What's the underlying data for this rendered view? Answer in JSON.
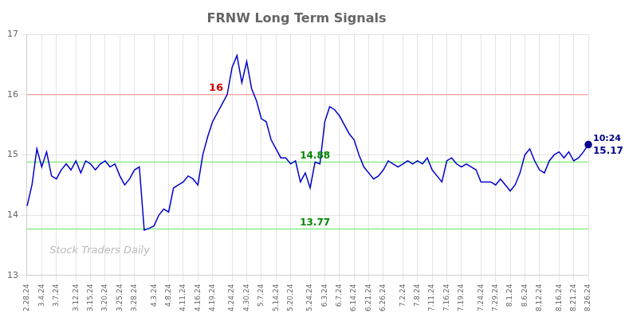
{
  "chart_data": {
    "type": "line",
    "title": "FRNW Long Term Signals",
    "categories": [
      "2.28.24",
      null,
      null,
      "3.4.24",
      null,
      null,
      "3.7.24",
      null,
      null,
      null,
      "3.12.24",
      null,
      null,
      "3.15.24",
      null,
      null,
      "3.20.24",
      null,
      null,
      "3.25.24",
      null,
      null,
      "3.28.24",
      null,
      null,
      null,
      "4.3.24",
      null,
      null,
      "4.8.24",
      null,
      null,
      "4.11.24",
      null,
      null,
      "4.16.24",
      null,
      null,
      "4.19.24",
      null,
      null,
      null,
      "4.24.24",
      null,
      null,
      "4.30.24",
      null,
      null,
      "5.7.24",
      null,
      null,
      "5.14.24",
      null,
      null,
      "5.20.24",
      null,
      null,
      null,
      "5.24.24",
      null,
      null,
      "6.3.24",
      null,
      null,
      "6.7.24",
      null,
      null,
      "6.14.24",
      null,
      null,
      "6.21.24",
      null,
      null,
      "6.26.24",
      null,
      null,
      null,
      "7.2.24",
      null,
      null,
      "7.8.24",
      null,
      null,
      "7.11.24",
      null,
      null,
      "7.16.24",
      null,
      null,
      "7.19.24",
      null,
      null,
      null,
      "7.24.24",
      null,
      null,
      "7.29.24",
      null,
      null,
      "8.1.24",
      null,
      null,
      "8.6.24",
      null,
      null,
      "8.12.24",
      null,
      null,
      null,
      "8.16.24",
      null,
      null,
      "8.21.24",
      null,
      null,
      "8.26.24"
    ],
    "values": [
      14.15,
      14.5,
      15.1,
      14.8,
      15.05,
      14.65,
      14.6,
      14.75,
      14.85,
      14.75,
      14.9,
      14.7,
      14.9,
      14.85,
      14.75,
      14.85,
      14.9,
      14.8,
      14.85,
      14.65,
      14.5,
      14.6,
      14.75,
      14.8,
      13.75,
      13.78,
      13.82,
      14.0,
      14.1,
      14.05,
      14.45,
      14.5,
      14.55,
      14.65,
      14.6,
      14.5,
      15.0,
      15.3,
      15.55,
      15.7,
      15.85,
      16.0,
      16.45,
      16.65,
      16.2,
      16.55,
      16.1,
      15.9,
      15.6,
      15.55,
      15.25,
      15.1,
      14.95,
      14.95,
      14.85,
      14.9,
      14.55,
      14.7,
      14.45,
      14.88,
      14.85,
      15.55,
      15.8,
      15.75,
      15.65,
      15.5,
      15.35,
      15.25,
      15.0,
      14.8,
      14.7,
      14.6,
      14.65,
      14.75,
      14.9,
      14.85,
      14.8,
      14.85,
      14.9,
      14.85,
      14.9,
      14.85,
      14.95,
      14.75,
      14.65,
      14.55,
      14.9,
      14.95,
      14.85,
      14.8,
      14.85,
      14.8,
      14.75,
      14.55,
      14.55,
      14.55,
      14.5,
      14.6,
      14.5,
      14.4,
      14.5,
      14.7,
      15.0,
      15.1,
      14.9,
      14.75,
      14.7,
      14.9,
      15.0,
      15.05,
      14.95,
      15.05,
      14.9,
      14.95,
      15.05,
      15.17
    ],
    "color": "#0000cc",
    "ylim": [
      13,
      17
    ],
    "yticks": [
      13,
      14,
      15,
      16,
      17
    ],
    "grid": true,
    "reference_lines": [
      {
        "y": 16,
        "color": "#ffaaaa",
        "label": "16",
        "label_color": "#cc0000"
      },
      {
        "y": 14.88,
        "color": "#88ee88",
        "label": "14.88",
        "label_color": "#008800"
      },
      {
        "y": 13.77,
        "color": "#88ee88",
        "label": "13.77",
        "label_color": "#008800"
      }
    ],
    "end_labels": {
      "texts": [
        "10:24",
        "15.17"
      ],
      "color": "#00008B"
    },
    "watermark": {
      "text": "Stock Traders Daily",
      "color": "#bbbbbb"
    }
  }
}
